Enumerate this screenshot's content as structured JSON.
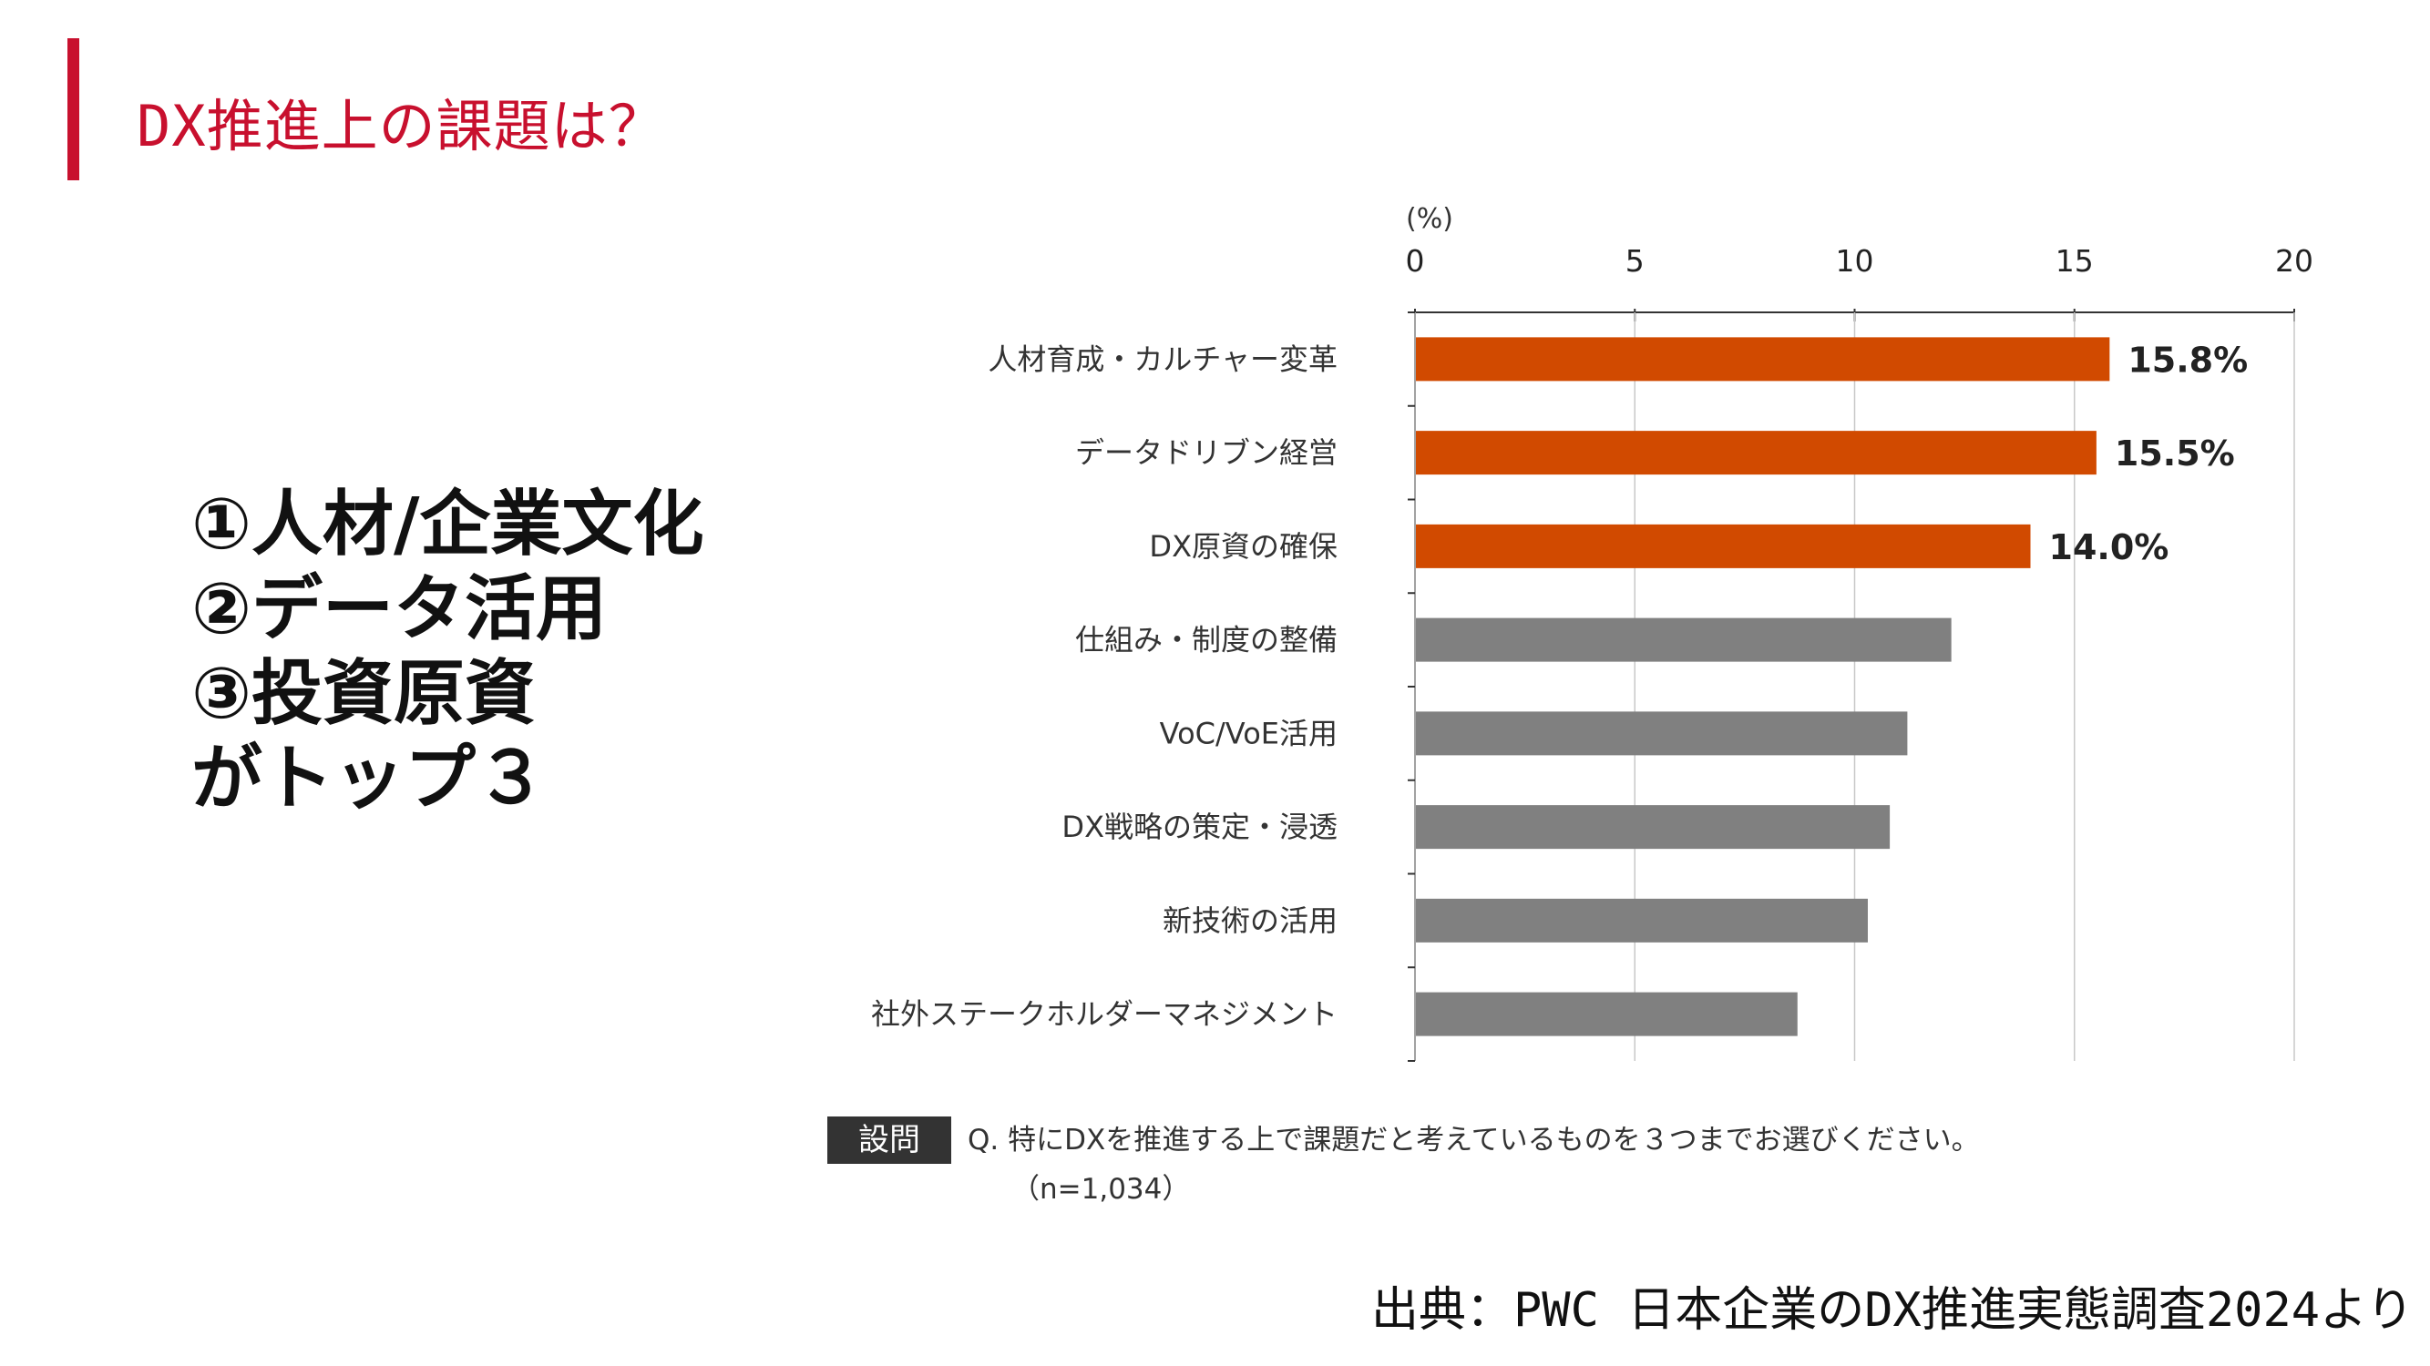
{
  "slide": {
    "title": "DX推進上の課題は？",
    "accent_color": "#c8102e"
  },
  "summary": {
    "lines": [
      "①人材/企業文化",
      "②データ活用",
      "③投資原資",
      "がトップ３"
    ]
  },
  "chart_data": {
    "type": "bar",
    "orientation": "horizontal",
    "unit_label": "(%)",
    "xlim": [
      0,
      20
    ],
    "x_ticks": [
      "0",
      "5",
      "10",
      "15",
      "20"
    ],
    "categories": [
      "人材育成・カルチャー変革",
      "データドリブン経営",
      "DX原資の確保",
      "仕組み・制度の整備",
      "VoC/VoE活用",
      "DX戦略の策定・浸透",
      "新技術の活用",
      "社外ステークホルダーマネジメント"
    ],
    "values": [
      15.8,
      15.5,
      14.0,
      12.2,
      11.2,
      10.8,
      10.3,
      8.7
    ],
    "data_labels": [
      "15.8%",
      "15.5%",
      "14.0%",
      "",
      "",
      "",
      "",
      ""
    ],
    "highlight_color": "#d14a00",
    "default_color": "#808080",
    "highlight_count": 3
  },
  "question": {
    "tag": "設問",
    "text": "Q. 特にDXを推進する上で課題だと考えているものを３つまでお選びください。",
    "n": "（n=1,034）"
  },
  "source": "出典：PWC 日本企業のDX推進実態調査2024より"
}
